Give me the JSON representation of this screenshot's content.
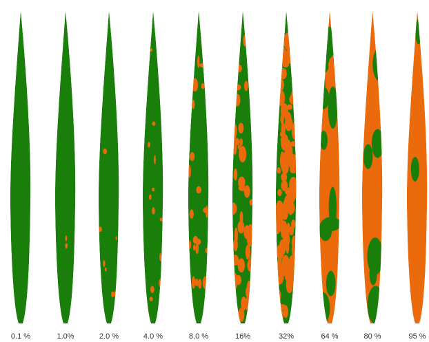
{
  "leaves": [
    {
      "label": "0.1 %"
    },
    {
      "label": "1.0%"
    },
    {
      "label": "2.0 %"
    },
    {
      "label": "4.0 %"
    },
    {
      "label": "8.0 %"
    },
    {
      "label": "16%"
    },
    {
      "label": "32%"
    },
    {
      "label": "64 %"
    },
    {
      "label": "80 %"
    },
    {
      "label": "95 %"
    }
  ]
}
